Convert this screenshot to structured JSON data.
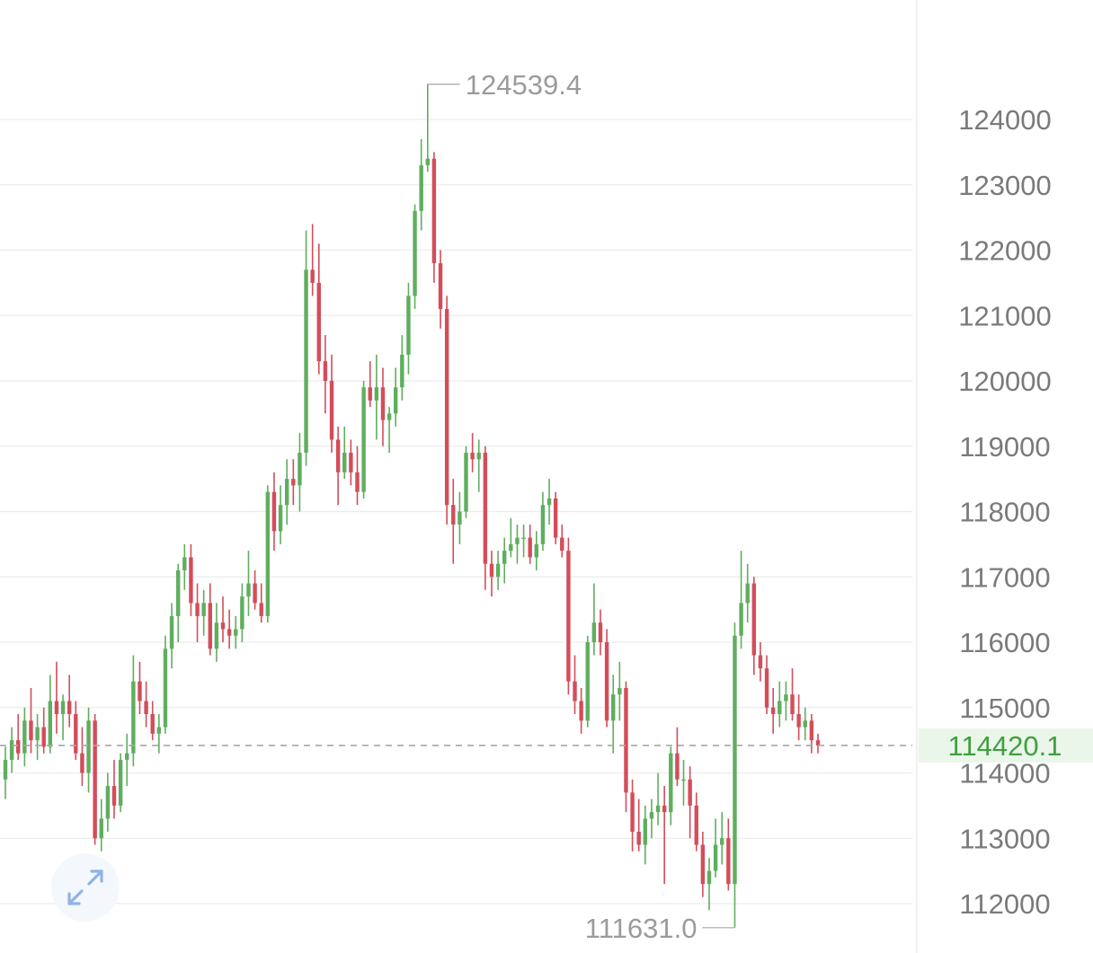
{
  "chart_data": {
    "type": "candlestick",
    "ylim": [
      111300,
      124900
    ],
    "yticks": [
      124000,
      123000,
      122000,
      121000,
      120000,
      119000,
      118000,
      117000,
      116000,
      115000,
      114000,
      113000,
      112000
    ],
    "ytick_labels": [
      "124000",
      "123000",
      "122000",
      "121000",
      "120000",
      "119000",
      "118000",
      "117000",
      "116000",
      "115000",
      "114000",
      "113000",
      "112000"
    ],
    "grid": true,
    "last_price": 114420.1,
    "last_price_label": "114420.1",
    "high_marker": {
      "value": 124539.4,
      "label": "124539.4"
    },
    "low_marker": {
      "value": 111631.0,
      "label": "111631.0"
    },
    "colors": {
      "up": "#5fae5f",
      "down": "#d34d5a",
      "grid": "#ececec",
      "last_line": "#a8a8a8",
      "last_bg": "#eaf6ea",
      "last_text": "#3f9f3f"
    },
    "icons": {
      "expand": "expand-arrows-icon"
    },
    "candles": [
      {
        "o": 113900,
        "h": 114400,
        "l": 113600,
        "c": 114200
      },
      {
        "o": 114200,
        "h": 114700,
        "l": 114000,
        "c": 114500
      },
      {
        "o": 114500,
        "h": 114900,
        "l": 114200,
        "c": 114300
      },
      {
        "o": 114300,
        "h": 115000,
        "l": 114100,
        "c": 114800
      },
      {
        "o": 114800,
        "h": 115300,
        "l": 114300,
        "c": 114500
      },
      {
        "o": 114500,
        "h": 114900,
        "l": 114200,
        "c": 114700
      },
      {
        "o": 114700,
        "h": 115000,
        "l": 114300,
        "c": 114400
      },
      {
        "o": 114400,
        "h": 115500,
        "l": 114300,
        "c": 115100
      },
      {
        "o": 115100,
        "h": 115700,
        "l": 114600,
        "c": 114900
      },
      {
        "o": 114900,
        "h": 115200,
        "l": 114500,
        "c": 115100
      },
      {
        "o": 115100,
        "h": 115500,
        "l": 114700,
        "c": 114900
      },
      {
        "o": 114900,
        "h": 115100,
        "l": 114200,
        "c": 114300
      },
      {
        "o": 114300,
        "h": 114700,
        "l": 113800,
        "c": 114000
      },
      {
        "o": 114000,
        "h": 115000,
        "l": 113700,
        "c": 114800
      },
      {
        "o": 114800,
        "h": 114900,
        "l": 112900,
        "c": 113000
      },
      {
        "o": 113000,
        "h": 113600,
        "l": 112800,
        "c": 113300
      },
      {
        "o": 113300,
        "h": 114000,
        "l": 113100,
        "c": 113800
      },
      {
        "o": 113800,
        "h": 114200,
        "l": 113300,
        "c": 113500
      },
      {
        "o": 113500,
        "h": 114300,
        "l": 113400,
        "c": 114200
      },
      {
        "o": 114200,
        "h": 114600,
        "l": 113800,
        "c": 114300
      },
      {
        "o": 114300,
        "h": 115800,
        "l": 114100,
        "c": 115400
      },
      {
        "o": 115400,
        "h": 115700,
        "l": 114900,
        "c": 115100
      },
      {
        "o": 115100,
        "h": 115400,
        "l": 114700,
        "c": 114900
      },
      {
        "o": 114900,
        "h": 115100,
        "l": 114500,
        "c": 114600
      },
      {
        "o": 114600,
        "h": 114900,
        "l": 114300,
        "c": 114700
      },
      {
        "o": 114700,
        "h": 116100,
        "l": 114600,
        "c": 115900
      },
      {
        "o": 115900,
        "h": 116600,
        "l": 115600,
        "c": 116400
      },
      {
        "o": 116400,
        "h": 117200,
        "l": 116000,
        "c": 117100
      },
      {
        "o": 117100,
        "h": 117500,
        "l": 116800,
        "c": 117300
      },
      {
        "o": 117300,
        "h": 117500,
        "l": 116400,
        "c": 116600
      },
      {
        "o": 116600,
        "h": 116900,
        "l": 116000,
        "c": 116400
      },
      {
        "o": 116400,
        "h": 116800,
        "l": 116100,
        "c": 116600
      },
      {
        "o": 116600,
        "h": 116900,
        "l": 115800,
        "c": 115900
      },
      {
        "o": 115900,
        "h": 116600,
        "l": 115700,
        "c": 116300
      },
      {
        "o": 116300,
        "h": 116700,
        "l": 116000,
        "c": 116200
      },
      {
        "o": 116200,
        "h": 116500,
        "l": 115900,
        "c": 116100
      },
      {
        "o": 116100,
        "h": 116400,
        "l": 115900,
        "c": 116200
      },
      {
        "o": 116200,
        "h": 116900,
        "l": 116000,
        "c": 116700
      },
      {
        "o": 116700,
        "h": 117400,
        "l": 116400,
        "c": 116900
      },
      {
        "o": 116900,
        "h": 117100,
        "l": 116500,
        "c": 116600
      },
      {
        "o": 116600,
        "h": 116900,
        "l": 116300,
        "c": 116400
      },
      {
        "o": 116400,
        "h": 118400,
        "l": 116300,
        "c": 118300
      },
      {
        "o": 118300,
        "h": 118600,
        "l": 117400,
        "c": 117700
      },
      {
        "o": 117700,
        "h": 118400,
        "l": 117500,
        "c": 118100
      },
      {
        "o": 118100,
        "h": 118800,
        "l": 117800,
        "c": 118500
      },
      {
        "o": 118500,
        "h": 118800,
        "l": 118100,
        "c": 118400
      },
      {
        "o": 118400,
        "h": 119200,
        "l": 118000,
        "c": 118900
      },
      {
        "o": 118900,
        "h": 122300,
        "l": 118700,
        "c": 121700
      },
      {
        "o": 121700,
        "h": 122400,
        "l": 121300,
        "c": 121500
      },
      {
        "o": 121500,
        "h": 122100,
        "l": 120100,
        "c": 120300
      },
      {
        "o": 120300,
        "h": 120700,
        "l": 119500,
        "c": 120000
      },
      {
        "o": 120000,
        "h": 120400,
        "l": 118900,
        "c": 119100
      },
      {
        "o": 119100,
        "h": 119300,
        "l": 118100,
        "c": 118600
      },
      {
        "o": 118600,
        "h": 119300,
        "l": 118500,
        "c": 118900
      },
      {
        "o": 118900,
        "h": 119100,
        "l": 118400,
        "c": 118600
      },
      {
        "o": 118600,
        "h": 119000,
        "l": 118100,
        "c": 118300
      },
      {
        "o": 118300,
        "h": 120000,
        "l": 118200,
        "c": 119900
      },
      {
        "o": 119900,
        "h": 120300,
        "l": 119600,
        "c": 119700
      },
      {
        "o": 119700,
        "h": 120400,
        "l": 119100,
        "c": 119900
      },
      {
        "o": 119900,
        "h": 120200,
        "l": 119000,
        "c": 119400
      },
      {
        "o": 119400,
        "h": 119600,
        "l": 118900,
        "c": 119500
      },
      {
        "o": 119500,
        "h": 120200,
        "l": 119300,
        "c": 119900
      },
      {
        "o": 119900,
        "h": 120700,
        "l": 119700,
        "c": 120400
      },
      {
        "o": 120400,
        "h": 121500,
        "l": 120100,
        "c": 121300
      },
      {
        "o": 121300,
        "h": 122700,
        "l": 121100,
        "c": 122600
      },
      {
        "o": 122600,
        "h": 123700,
        "l": 122300,
        "c": 123300
      },
      {
        "o": 123300,
        "h": 124539.4,
        "l": 123200,
        "c": 123400
      },
      {
        "o": 123400,
        "h": 123500,
        "l": 121500,
        "c": 121800
      },
      {
        "o": 121800,
        "h": 122000,
        "l": 120800,
        "c": 121100
      },
      {
        "o": 121100,
        "h": 121300,
        "l": 117800,
        "c": 118100
      },
      {
        "o": 118100,
        "h": 118500,
        "l": 117200,
        "c": 117800
      },
      {
        "o": 117800,
        "h": 118300,
        "l": 117500,
        "c": 118000
      },
      {
        "o": 118000,
        "h": 119000,
        "l": 117900,
        "c": 118900
      },
      {
        "o": 118900,
        "h": 119200,
        "l": 118600,
        "c": 118800
      },
      {
        "o": 118800,
        "h": 119100,
        "l": 118300,
        "c": 118900
      },
      {
        "o": 118900,
        "h": 119000,
        "l": 116800,
        "c": 117200
      },
      {
        "o": 117200,
        "h": 117400,
        "l": 116700,
        "c": 117000
      },
      {
        "o": 117000,
        "h": 117400,
        "l": 116800,
        "c": 117200
      },
      {
        "o": 117200,
        "h": 117600,
        "l": 116900,
        "c": 117400
      },
      {
        "o": 117400,
        "h": 117900,
        "l": 117300,
        "c": 117500
      },
      {
        "o": 117500,
        "h": 117800,
        "l": 117200,
        "c": 117600
      },
      {
        "o": 117600,
        "h": 117800,
        "l": 117300,
        "c": 117600
      },
      {
        "o": 117600,
        "h": 117800,
        "l": 117200,
        "c": 117300
      },
      {
        "o": 117300,
        "h": 117700,
        "l": 117100,
        "c": 117500
      },
      {
        "o": 117500,
        "h": 118300,
        "l": 117400,
        "c": 118100
      },
      {
        "o": 118100,
        "h": 118500,
        "l": 117800,
        "c": 118200
      },
      {
        "o": 118200,
        "h": 118300,
        "l": 117500,
        "c": 117600
      },
      {
        "o": 117600,
        "h": 117800,
        "l": 117300,
        "c": 117400
      },
      {
        "o": 117400,
        "h": 117600,
        "l": 115200,
        "c": 115400
      },
      {
        "o": 115400,
        "h": 115800,
        "l": 114900,
        "c": 115100
      },
      {
        "o": 115100,
        "h": 115300,
        "l": 114600,
        "c": 114800
      },
      {
        "o": 114800,
        "h": 116100,
        "l": 114700,
        "c": 116000
      },
      {
        "o": 116000,
        "h": 116900,
        "l": 115800,
        "c": 116300
      },
      {
        "o": 116300,
        "h": 116500,
        "l": 115800,
        "c": 116000
      },
      {
        "o": 116000,
        "h": 116200,
        "l": 114700,
        "c": 114800
      },
      {
        "o": 114800,
        "h": 115500,
        "l": 114300,
        "c": 115200
      },
      {
        "o": 115200,
        "h": 115700,
        "l": 114800,
        "c": 115300
      },
      {
        "o": 115300,
        "h": 115400,
        "l": 113400,
        "c": 113700
      },
      {
        "o": 113700,
        "h": 113900,
        "l": 112800,
        "c": 113100
      },
      {
        "o": 113100,
        "h": 113600,
        "l": 112800,
        "c": 112900
      },
      {
        "o": 112900,
        "h": 113500,
        "l": 112600,
        "c": 113300
      },
      {
        "o": 113300,
        "h": 113600,
        "l": 113000,
        "c": 113400
      },
      {
        "o": 113400,
        "h": 114000,
        "l": 113200,
        "c": 113500
      },
      {
        "o": 113500,
        "h": 113800,
        "l": 112300,
        "c": 113400
      },
      {
        "o": 113400,
        "h": 114400,
        "l": 113200,
        "c": 114300
      },
      {
        "o": 114300,
        "h": 114700,
        "l": 113800,
        "c": 113900
      },
      {
        "o": 113900,
        "h": 114200,
        "l": 113500,
        "c": 113900
      },
      {
        "o": 113900,
        "h": 114100,
        "l": 113000,
        "c": 113500
      },
      {
        "o": 113500,
        "h": 113700,
        "l": 112800,
        "c": 112900
      },
      {
        "o": 112900,
        "h": 113100,
        "l": 112100,
        "c": 112300
      },
      {
        "o": 112300,
        "h": 112700,
        "l": 111900,
        "c": 112500
      },
      {
        "o": 112500,
        "h": 113300,
        "l": 112400,
        "c": 112900
      },
      {
        "o": 112900,
        "h": 113400,
        "l": 112600,
        "c": 113000
      },
      {
        "o": 113000,
        "h": 113300,
        "l": 112200,
        "c": 112300
      },
      {
        "o": 112300,
        "h": 116300,
        "l": 111631,
        "c": 116100
      },
      {
        "o": 116100,
        "h": 117400,
        "l": 115900,
        "c": 116600
      },
      {
        "o": 116600,
        "h": 117200,
        "l": 116300,
        "c": 116900
      },
      {
        "o": 116900,
        "h": 117000,
        "l": 115500,
        "c": 115800
      },
      {
        "o": 115800,
        "h": 116000,
        "l": 115400,
        "c": 115600
      },
      {
        "o": 115600,
        "h": 115800,
        "l": 114900,
        "c": 115000
      },
      {
        "o": 115000,
        "h": 115300,
        "l": 114600,
        "c": 114900
      },
      {
        "o": 114900,
        "h": 115400,
        "l": 114700,
        "c": 115100
      },
      {
        "o": 115100,
        "h": 115400,
        "l": 114800,
        "c": 115200
      },
      {
        "o": 115200,
        "h": 115600,
        "l": 114800,
        "c": 114900
      },
      {
        "o": 114900,
        "h": 115200,
        "l": 114500,
        "c": 114700
      },
      {
        "o": 114700,
        "h": 115000,
        "l": 114500,
        "c": 114800
      },
      {
        "o": 114800,
        "h": 114900,
        "l": 114300,
        "c": 114500
      },
      {
        "o": 114500,
        "h": 114600,
        "l": 114300,
        "c": 114420.1
      }
    ]
  }
}
